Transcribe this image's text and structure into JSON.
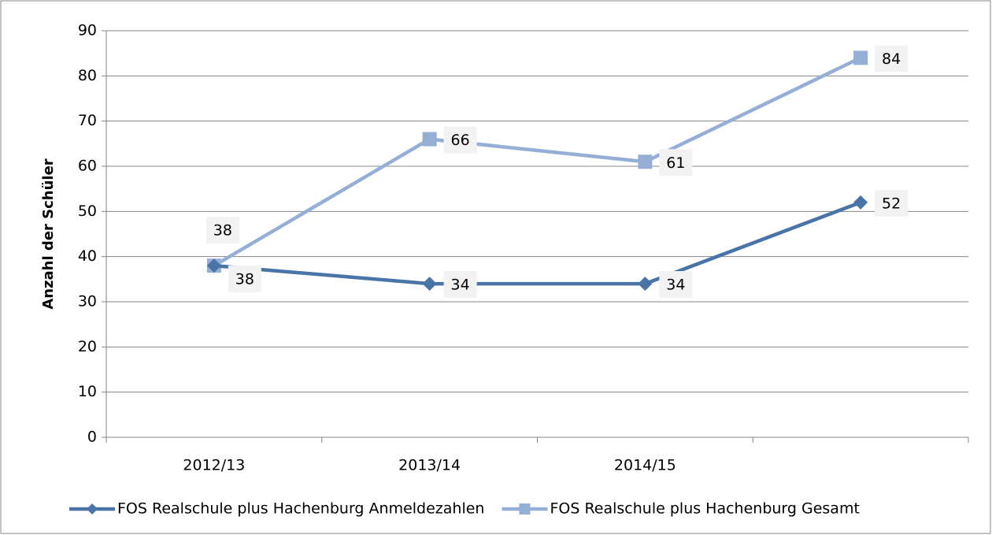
{
  "chart_data": {
    "type": "line",
    "y_label": "Anzahl der Schüler",
    "categories": [
      "2012/13",
      "2013/14",
      "2014/15",
      null
    ],
    "series": [
      {
        "name": "FOS Realschule plus Hachenburg Anmeldezahlen",
        "color": "#4a74a8",
        "marker": "diamond",
        "values": [
          38,
          34,
          34,
          52
        ]
      },
      {
        "name": "FOS Realschule plus Hachenburg Gesamt",
        "color": "#95aed5",
        "marker": "square",
        "values": [
          38,
          66,
          61,
          84
        ]
      }
    ],
    "ylim": [
      0,
      90
    ],
    "yticks": [
      0,
      10,
      20,
      30,
      40,
      50,
      60,
      70,
      80,
      90
    ],
    "grid": true,
    "legend": "bottom"
  }
}
